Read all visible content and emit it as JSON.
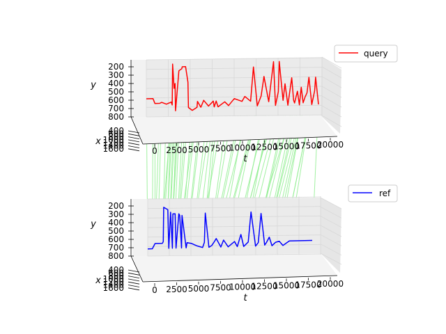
{
  "chart_data": [
    {
      "type": "line",
      "projection": "3d",
      "legend_position": "top-right",
      "axis_labels": {
        "t": "t",
        "x": "x",
        "y": "y"
      },
      "t_ticks": [
        "0",
        "2500",
        "5000",
        "7500",
        "10000",
        "12500",
        "15000",
        "17500",
        "20000"
      ],
      "x_ticks": [
        "400",
        "600",
        "800",
        "1000",
        "1200",
        "1400",
        "1600"
      ],
      "y_ticks": [
        "200",
        "300",
        "400",
        "500",
        "600",
        "700",
        "800"
      ],
      "series": [
        {
          "name": "query",
          "color": "#ff0000",
          "t": [
            0,
            700,
            900,
            1400,
            1600,
            2100,
            2600,
            2700,
            2750,
            2900,
            3000,
            3050,
            3200,
            3400,
            3700,
            3750,
            4100,
            4350,
            4400,
            4800,
            5300,
            5350,
            5700,
            6000,
            6500,
            7000,
            7100,
            7300,
            7500,
            8200,
            8600,
            9200,
            10000,
            10300,
            10900,
            11200,
            11600,
            12000,
            12300,
            12800,
            13300,
            13500,
            13800,
            13900,
            14300,
            14500,
            14800,
            15200,
            15400,
            15500,
            15800,
            16000,
            16200,
            16400,
            16600,
            16800,
            17000,
            17300,
            17600,
            17700,
            18000
          ],
          "y": [
            600,
            600,
            650,
            650,
            640,
            660,
            640,
            670,
            250,
            500,
            450,
            730,
            560,
            320,
            300,
            280,
            280,
            440,
            700,
            730,
            700,
            640,
            700,
            630,
            690,
            640,
            700,
            640,
            700,
            650,
            690,
            620,
            650,
            600,
            650,
            300,
            700,
            600,
            400,
            660,
            250,
            700,
            560,
            250,
            650,
            480,
            700,
            420,
            650,
            680,
            560,
            700,
            520,
            680,
            620,
            580,
            420,
            700,
            560,
            420,
            700
          ]
        },
        {
          "name": "ref",
          "color": "#0000ff",
          "t": [
            0,
            500,
            800,
            1100,
            1600,
            1700,
            1750,
            2200,
            2300,
            2500,
            2700,
            2750,
            3000,
            3100,
            3400,
            3500,
            3700,
            3750,
            4200,
            4300,
            4800,
            5400,
            6000,
            6200,
            6300,
            6700,
            7000,
            7200,
            7500,
            8000,
            8300,
            8800,
            9500,
            9800,
            10200,
            10500,
            11000,
            11300,
            11800,
            12100,
            12400,
            12800,
            13000,
            13300,
            13600,
            14000,
            14400,
            14800,
            15500,
            18000
          ],
          "y": [
            700,
            700,
            640,
            640,
            640,
            620,
            220,
            250,
            700,
            280,
            700,
            300,
            300,
            700,
            300,
            320,
            700,
            320,
            700,
            640,
            650,
            680,
            700,
            640,
            300,
            700,
            680,
            650,
            600,
            700,
            620,
            700,
            640,
            700,
            560,
            700,
            650,
            300,
            700,
            660,
            320,
            690,
            660,
            600,
            700,
            660,
            650,
            700,
            650,
            650
          ]
        }
      ]
    }
  ]
}
